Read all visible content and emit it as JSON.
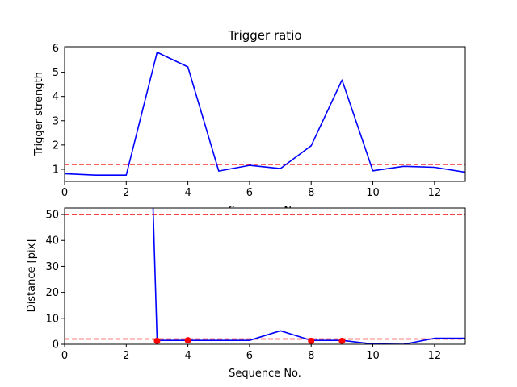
{
  "chart_data": [
    {
      "type": "line",
      "title": "Trigger ratio",
      "xlabel": "Sequence No.",
      "ylabel": "Trigger strength",
      "xlim": [
        0,
        13
      ],
      "ylim": [
        0.5,
        6.05
      ],
      "xticks": [
        0,
        2,
        4,
        6,
        8,
        10,
        12
      ],
      "yticks": [
        1,
        2,
        3,
        4,
        5,
        6
      ],
      "grid": false,
      "series": [
        {
          "color": "#0000ff",
          "style": "solid",
          "x": [
            0,
            1,
            2,
            3,
            4,
            5,
            6,
            7,
            8,
            9,
            10,
            11,
            12,
            13
          ],
          "y": [
            0.82,
            0.76,
            0.76,
            5.82,
            5.22,
            0.93,
            1.16,
            1.03,
            1.97,
            4.68,
            0.94,
            1.12,
            1.08,
            0.88
          ]
        }
      ],
      "hlines": [
        {
          "y": 1.2,
          "color": "#ff0000",
          "style": "dashed"
        }
      ]
    },
    {
      "type": "line",
      "title": "",
      "xlabel": "Sequence No.",
      "ylabel": "Distance [pix]",
      "xlim": [
        0,
        13
      ],
      "ylim": [
        0,
        52.5
      ],
      "xticks": [
        0,
        2,
        4,
        6,
        8,
        10,
        12
      ],
      "yticks": [
        0,
        10,
        20,
        30,
        40,
        50
      ],
      "grid": false,
      "series": [
        {
          "color": "#0000ff",
          "style": "solid",
          "x": [
            2.87,
            3,
            4,
            5,
            6,
            7,
            8,
            9,
            10,
            11,
            12,
            13
          ],
          "y": [
            52.5,
            1.5,
            1.5,
            1.5,
            1.5,
            5.2,
            1.5,
            1.5,
            0.1,
            0.0,
            2.3,
            2.3
          ]
        },
        {
          "color": "#ff0000",
          "style": "markers",
          "x": [
            3,
            4,
            8,
            9
          ],
          "y": [
            1.3,
            1.5,
            1.3,
            1.3
          ]
        }
      ],
      "hlines": [
        {
          "y": 50,
          "color": "#ff0000",
          "style": "dashed"
        },
        {
          "y": 2,
          "color": "#ff0000",
          "style": "dashed"
        }
      ]
    }
  ]
}
